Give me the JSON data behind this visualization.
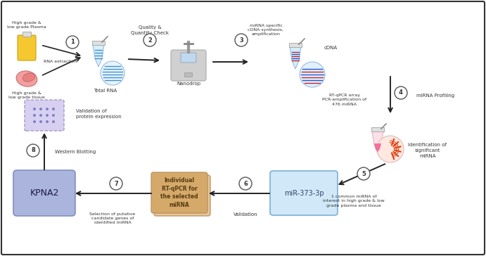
{
  "bg_color": "#ffffff",
  "border_color": "#333333",
  "step_circle_color": "#ffffff",
  "step_circle_edge": "#555555",
  "arrow_color": "#222222",
  "kpna2_box_face": "#aab4dc",
  "kpna2_box_edge": "#8090c0",
  "mir_box_face": "#d0e8f8",
  "mir_box_edge": "#7ab0d8",
  "rt_box_face": "#d4a96a",
  "rt_box_face2": "#e8c898",
  "rt_box_edge": "#b89060",
  "western_face": "#d8d0f0",
  "western_edge": "#a090c0",
  "labels": {
    "plasma": "High grade &\nlow grade Plasma",
    "tissue": "High grade &\nlow grade tissue",
    "rna_extraction": "RNA extraction",
    "total_rna": "Total RNA",
    "quality": "Quality &\nQuantity Check",
    "nanodrop": "Nanodrop",
    "mirna_synth": "miRNA specific\ncDNA synthesis,\namplification",
    "cdna": "cDNA",
    "rt_qpcr_array": "RT-qPCR array\nPCR-amplification of\n476 miRNA",
    "mirna_profiling": "miRNA Profiling",
    "ident_sig": "Identification of\nsignificant\nmiRNA",
    "common_mirna": "1 common miRNA of\ninterest in high grade & low\ngrade plasma and tissue",
    "mir373": "miR-373-3p",
    "validation": "Validation",
    "rt_individual": "Individual\nRT-qPCR for\nthe selected\nmiRNA",
    "sel_putative": "Selection of putative\ncandidate genes of\nidentified miRNA",
    "kpna2": "KPNA2",
    "western_blotting": "Western Blotting",
    "val_protein": "Validation of\nprotein expression"
  }
}
